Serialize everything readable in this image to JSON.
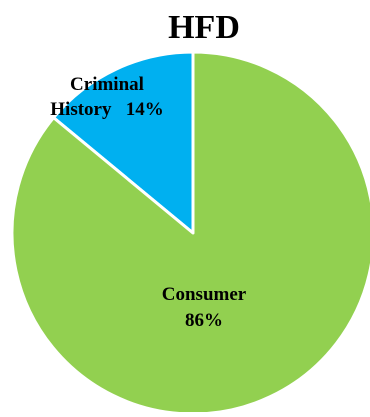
{
  "chart_data": {
    "type": "pie",
    "title": "HFD",
    "slices": [
      {
        "label_lines": [
          "Criminal",
          "History   14%"
        ],
        "value": 14,
        "color": "#00b0f0"
      },
      {
        "label_lines": [
          "Consumer",
          "86%"
        ],
        "value": 86,
        "color": "#92d050"
      }
    ],
    "start_angle_deg": 0,
    "direction": "counterclockwise",
    "border_color": "#ffffff",
    "legend": "none"
  }
}
